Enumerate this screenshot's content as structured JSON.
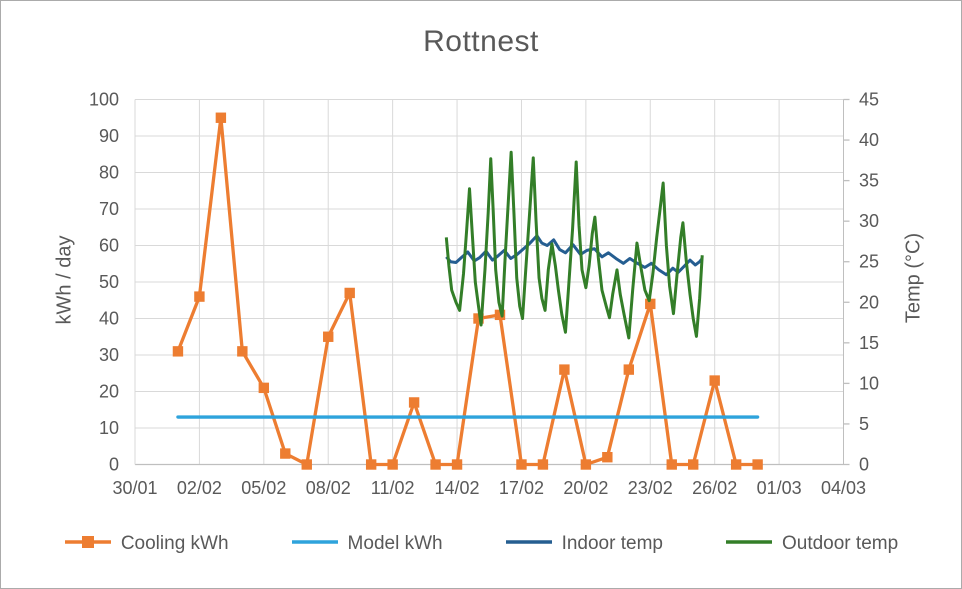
{
  "window": {
    "background": "#FFFFFF",
    "border_color": "#ABABAB"
  },
  "chart_data": {
    "type": "line",
    "title": "Rottnest",
    "grid": true,
    "legend_position": "bottom",
    "style": {
      "gridline_color": "#D9D9D9",
      "axis_line_color": "#BFBFBF",
      "text_color": "#595959",
      "plot_background": "#FFFFFF"
    },
    "x_axis": {
      "tick_labels": [
        "30/01",
        "02/02",
        "05/02",
        "08/02",
        "11/02",
        "14/02",
        "17/02",
        "20/02",
        "23/02",
        "26/02",
        "01/03",
        "04/03"
      ],
      "tick_interval_days": 3,
      "range_days": [
        0,
        33
      ],
      "note": "x expressed as days after 30/01"
    },
    "y_axis_left": {
      "label": "kWh / day",
      "min": 0,
      "max": 100,
      "step": 10,
      "tick_labels": [
        "0",
        "10",
        "20",
        "30",
        "40",
        "50",
        "60",
        "70",
        "80",
        "90",
        "100"
      ]
    },
    "y_axis_right": {
      "label": "Temp (°C)",
      "min": 0,
      "max": 45,
      "step": 5,
      "tick_labels": [
        "0",
        "5",
        "10",
        "15",
        "20",
        "25",
        "30",
        "35",
        "40",
        "45"
      ]
    },
    "series": [
      {
        "name": "Cooling kWh",
        "axis": "left",
        "color": "#ED7D31",
        "marker": "square",
        "dates": [
          "01/02",
          "02/02",
          "03/02",
          "04/02",
          "05/02",
          "06/02",
          "07/02",
          "08/02",
          "09/02",
          "10/02",
          "11/02",
          "12/02",
          "13/02",
          "14/02",
          "15/02",
          "16/02",
          "17/02",
          "18/02",
          "19/02",
          "20/02",
          "21/02",
          "22/02",
          "23/02",
          "24/02",
          "25/02",
          "26/02",
          "27/02",
          "28/02"
        ],
        "x": [
          2,
          3,
          4,
          5,
          6,
          7,
          8,
          9,
          10,
          11,
          12,
          13,
          14,
          15,
          16,
          17,
          18,
          19,
          20,
          21,
          22,
          23,
          24,
          25,
          26,
          27,
          28,
          29
        ],
        "values": [
          31,
          46,
          95,
          31,
          21,
          3,
          0,
          35,
          47,
          0,
          0,
          17,
          0,
          0,
          40,
          41,
          0,
          0,
          26,
          0,
          2,
          26,
          44,
          0,
          0,
          23,
          0,
          0
        ]
      },
      {
        "name": "Model kWh",
        "axis": "left",
        "color": "#2EA3DC",
        "marker": "none",
        "x": [
          2,
          29
        ],
        "values": [
          13,
          13
        ]
      },
      {
        "name": "Indoor temp",
        "axis": "right",
        "color": "#255E91",
        "marker": "none",
        "points": [
          [
            14.5,
            25.6
          ],
          [
            14.7,
            25.0
          ],
          [
            14.95,
            24.9
          ],
          [
            15.2,
            25.5
          ],
          [
            15.5,
            26.2
          ],
          [
            15.8,
            25.1
          ],
          [
            16.05,
            25.5
          ],
          [
            16.35,
            26.3
          ],
          [
            16.65,
            25.2
          ],
          [
            16.9,
            25.7
          ],
          [
            17.2,
            26.4
          ],
          [
            17.5,
            25.4
          ],
          [
            17.8,
            25.9
          ],
          [
            18.1,
            26.6
          ],
          [
            18.4,
            27.3
          ],
          [
            18.72,
            28.2
          ],
          [
            18.95,
            27.3
          ],
          [
            19.2,
            27.0
          ],
          [
            19.5,
            27.7
          ],
          [
            19.78,
            26.5
          ],
          [
            20.05,
            26.1
          ],
          [
            20.4,
            27.1
          ],
          [
            20.75,
            25.9
          ],
          [
            21.05,
            26.4
          ],
          [
            21.4,
            26.6
          ],
          [
            21.75,
            25.6
          ],
          [
            22.05,
            26.1
          ],
          [
            22.4,
            25.4
          ],
          [
            22.75,
            24.8
          ],
          [
            23.05,
            25.4
          ],
          [
            23.4,
            24.8
          ],
          [
            23.75,
            24.3
          ],
          [
            24.05,
            24.8
          ],
          [
            24.4,
            24.0
          ],
          [
            24.75,
            23.4
          ],
          [
            25.05,
            24.2
          ],
          [
            25.3,
            23.7
          ],
          [
            25.6,
            24.5
          ],
          [
            25.85,
            25.2
          ],
          [
            26.1,
            24.6
          ],
          [
            26.3,
            25.0
          ],
          [
            26.42,
            25.4
          ]
        ]
      },
      {
        "name": "Outdoor temp",
        "axis": "right",
        "color": "#337E28",
        "marker": "none",
        "points": [
          [
            14.5,
            28.0
          ],
          [
            14.62,
            24.5
          ],
          [
            14.75,
            21.5
          ],
          [
            14.95,
            20.0
          ],
          [
            15.12,
            19.0
          ],
          [
            15.3,
            23.5
          ],
          [
            15.45,
            29.0
          ],
          [
            15.58,
            34.0
          ],
          [
            15.72,
            28.0
          ],
          [
            15.85,
            22.5
          ],
          [
            16.0,
            19.5
          ],
          [
            16.12,
            17.2
          ],
          [
            16.3,
            24.0
          ],
          [
            16.45,
            31.0
          ],
          [
            16.57,
            37.7
          ],
          [
            16.68,
            31.5
          ],
          [
            16.8,
            24.0
          ],
          [
            16.95,
            20.0
          ],
          [
            17.1,
            18.3
          ],
          [
            17.25,
            26.0
          ],
          [
            17.4,
            33.0
          ],
          [
            17.52,
            38.5
          ],
          [
            17.65,
            31.0
          ],
          [
            17.78,
            23.0
          ],
          [
            17.92,
            19.5
          ],
          [
            18.05,
            18.0
          ],
          [
            18.2,
            24.0
          ],
          [
            18.38,
            31.0
          ],
          [
            18.55,
            37.8
          ],
          [
            18.68,
            30.0
          ],
          [
            18.82,
            23.0
          ],
          [
            18.95,
            20.5
          ],
          [
            19.1,
            19.0
          ],
          [
            19.25,
            24.0
          ],
          [
            19.42,
            27.2
          ],
          [
            19.58,
            24.5
          ],
          [
            19.72,
            21.5
          ],
          [
            19.88,
            18.5
          ],
          [
            20.05,
            16.3
          ],
          [
            20.2,
            22.0
          ],
          [
            20.38,
            29.0
          ],
          [
            20.55,
            37.3
          ],
          [
            20.68,
            29.5
          ],
          [
            20.82,
            24.0
          ],
          [
            21.0,
            21.8
          ],
          [
            21.15,
            24.5
          ],
          [
            21.3,
            28.5
          ],
          [
            21.42,
            30.5
          ],
          [
            21.58,
            25.5
          ],
          [
            21.75,
            21.5
          ],
          [
            21.95,
            19.5
          ],
          [
            22.1,
            18.1
          ],
          [
            22.25,
            21.0
          ],
          [
            22.45,
            24.0
          ],
          [
            22.6,
            21.0
          ],
          [
            22.78,
            18.5
          ],
          [
            23.0,
            15.6
          ],
          [
            23.18,
            21.5
          ],
          [
            23.38,
            27.3
          ],
          [
            23.55,
            24.5
          ],
          [
            23.75,
            21.5
          ],
          [
            23.95,
            20.2
          ],
          [
            24.12,
            23.5
          ],
          [
            24.3,
            28.0
          ],
          [
            24.48,
            32.0
          ],
          [
            24.6,
            34.7
          ],
          [
            24.75,
            27.0
          ],
          [
            24.9,
            22.0
          ],
          [
            25.08,
            18.6
          ],
          [
            25.25,
            23.5
          ],
          [
            25.42,
            28.0
          ],
          [
            25.52,
            29.8
          ],
          [
            25.68,
            25.0
          ],
          [
            25.85,
            21.0
          ],
          [
            26.0,
            18.0
          ],
          [
            26.15,
            15.8
          ],
          [
            26.3,
            20.5
          ],
          [
            26.42,
            25.8
          ]
        ]
      }
    ]
  }
}
